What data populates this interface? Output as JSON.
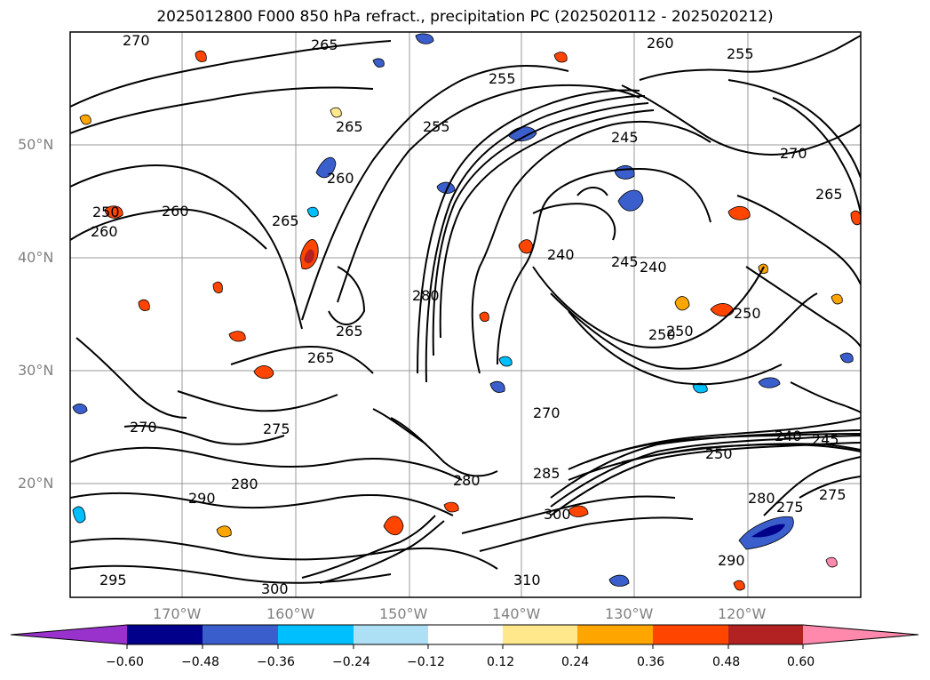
{
  "title": "2025012800 F000 850 hPa refract., precipitation PC (2025020112 - 2025020212)",
  "lat_labels": [
    "50°N",
    "40°N",
    "30°N",
    "20°N"
  ],
  "lon_labels": [
    "170°W",
    "160°W",
    "150°W",
    "140°W",
    "130°W",
    "120°W"
  ],
  "contour_labels": [
    "270",
    "265",
    "260",
    "255",
    "250",
    "245",
    "240",
    "260",
    "265",
    "255",
    "250",
    "240",
    "245",
    "260",
    "265",
    "270",
    "275",
    "280",
    "285",
    "290",
    "300",
    "310",
    "270",
    "275",
    "280",
    "290",
    "295",
    "300",
    "265",
    "280",
    "280",
    "275",
    "240",
    "245",
    "250",
    "265",
    "270",
    "255",
    "260",
    "265",
    "250",
    "250"
  ],
  "colorbar": {
    "ticks": [
      "−0.60",
      "−0.48",
      "−0.36",
      "−0.24",
      "−0.12",
      "0.12",
      "0.24",
      "0.36",
      "0.48",
      "0.60"
    ],
    "colors": [
      "#9932CC",
      "#00008B",
      "#3A5FCD",
      "#00BFFF",
      "#ADE0F5",
      "#FFFFFF",
      "#FFE88C",
      "#FFA500",
      "#FF4500",
      "#B22222",
      "#FF89AC"
    ]
  }
}
